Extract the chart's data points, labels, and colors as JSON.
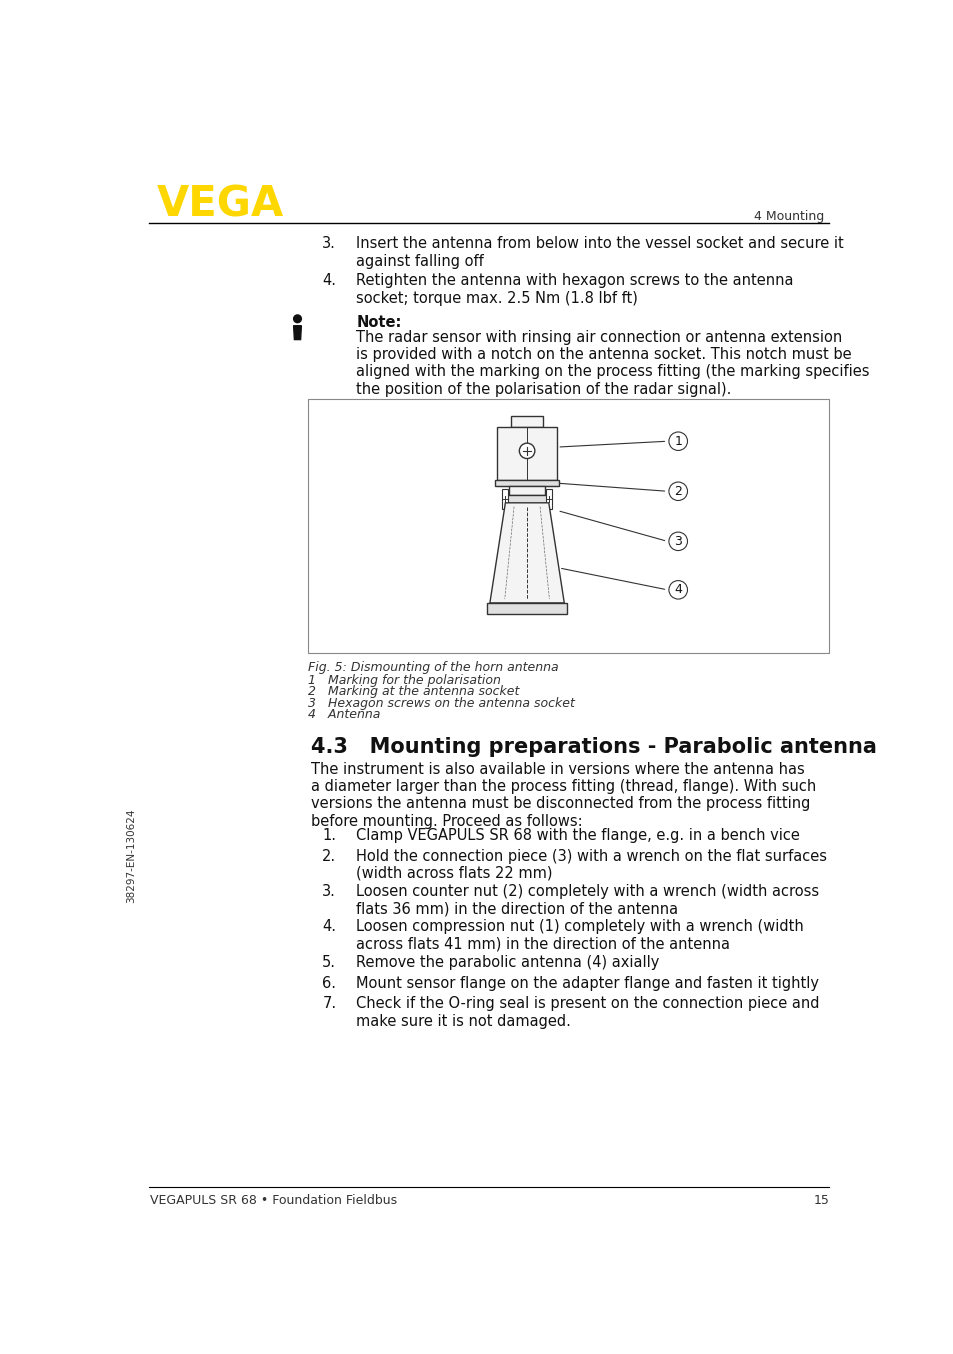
{
  "page_bg": "#ffffff",
  "header_logo_text": "VEGA",
  "header_logo_color": "#FFD700",
  "header_right_text": "4 Mounting",
  "footer_left_text": "VEGAPULS SR 68 • Foundation Fieldbus",
  "footer_right_text": "15",
  "sidebar_text": "38297-EN-130624",
  "numbered_items_top": [
    {
      "num": "3.",
      "text": "Insert the antenna from below into the vessel socket and secure it\nagainst falling off"
    },
    {
      "num": "4.",
      "text": "Retighten the antenna with hexagon screws to the antenna\nsocket; torque max. 2.5 Nm (1.8 lbf ft)"
    }
  ],
  "note_bold": "Note:",
  "note_text": "The radar sensor with rinsing air connection or antenna extension\nis provided with a notch on the antenna socket. This notch must be\naligned with the marking on the process fitting (the marking specifies\nthe position of the polarisation of the radar signal).",
  "fig_caption": "Fig. 5: Dismounting of the horn antenna",
  "fig_items": [
    "1   Marking for the polarisation",
    "2   Marking at the antenna socket",
    "3   Hexagon screws on the antenna socket",
    "4   Antenna"
  ],
  "section_title": "4.3   Mounting preparations - Parabolic antenna",
  "section_intro": "The instrument is also available in versions where the antenna has\na diameter larger than the process fitting (thread, flange). With such\nversions the antenna must be disconnected from the process fitting\nbefore mounting. Proceed as follows:",
  "numbered_items_bottom": [
    {
      "num": "1.",
      "text": "Clamp VEGAPULS SR 68 with the flange, e.g. in a bench vice"
    },
    {
      "num": "2.",
      "text": "Hold the connection piece (3) with a wrench on the flat surfaces\n(width across flats 22 mm)"
    },
    {
      "num": "3.",
      "text": "Loosen counter nut (2) completely with a wrench (width across\nflats 36 mm) in the direction of the antenna"
    },
    {
      "num": "4.",
      "text": "Loosen compression nut (1) completely with a wrench (width\nacross flats 41 mm) in the direction of the antenna"
    },
    {
      "num": "5.",
      "text": "Remove the parabolic antenna (4) axially"
    },
    {
      "num": "6.",
      "text": "Mount sensor flange on the adapter flange and fasten it tightly"
    },
    {
      "num": "7.",
      "text": "Check if the O-ring seal is present on the connection piece and\nmake sure it is not damaged."
    }
  ]
}
